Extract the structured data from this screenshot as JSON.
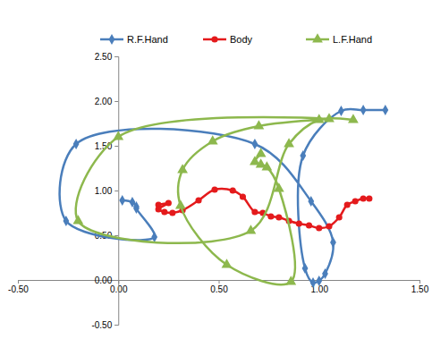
{
  "chart_data": {
    "type": "line",
    "legend": "top",
    "grid": false,
    "xlim": [
      -0.5,
      1.5
    ],
    "xticks": [
      {
        "value": -0.5,
        "label": "-0.50"
      },
      {
        "value": 0,
        "label": "0.00"
      },
      {
        "value": 0.5,
        "label": "0.50"
      },
      {
        "value": 1,
        "label": "1.00"
      },
      {
        "value": 1.5,
        "label": "1.50"
      }
    ],
    "ylim": [
      -0.5,
      2.5
    ],
    "yticks": [
      {
        "value": -0.5,
        "label": "-0.50"
      },
      {
        "value": 0,
        "label": "0.00"
      },
      {
        "value": 0.5,
        "label": "0.50"
      },
      {
        "value": 1,
        "label": "1.00"
      },
      {
        "value": 1.5,
        "label": "1.50"
      },
      {
        "value": 2,
        "label": "2.00"
      },
      {
        "value": 2.5,
        "label": "2.50"
      }
    ],
    "series": [
      {
        "name": "R.F.Hand",
        "color": "#4a7ebb",
        "marker": "diamond",
        "line_style": "solid",
        "x": [
          0.02,
          0.07,
          0.09,
          0.09,
          0.18,
          -0.26,
          -0.21,
          0.68,
          0.96,
          1.07,
          1.03,
          1.0,
          0.97,
          0.93,
          0.92,
          1.11,
          1.22,
          1.33
        ],
        "values": [
          0.89,
          0.87,
          0.82,
          0.8,
          0.48,
          0.66,
          1.52,
          1.52,
          0.88,
          0.42,
          0.07,
          -0.01,
          -0.03,
          0.13,
          1.39,
          1.89,
          1.9,
          1.9
        ]
      },
      {
        "name": "Body",
        "color": "#e41a1c",
        "marker": "circle",
        "line_style": "solid",
        "x": [
          0.2,
          0.25,
          0.2,
          0.23,
          0.27,
          0.32,
          0.4,
          0.48,
          0.57,
          0.62,
          0.68,
          0.72,
          0.76,
          0.8,
          0.85,
          0.9,
          0.95,
          1.0,
          1.05,
          1.1,
          1.14,
          1.18,
          1.22,
          1.25
        ],
        "values": [
          0.84,
          0.86,
          0.79,
          0.76,
          0.75,
          0.78,
          0.89,
          1.01,
          1.0,
          0.93,
          0.76,
          0.75,
          0.71,
          0.7,
          0.66,
          0.63,
          0.61,
          0.58,
          0.6,
          0.7,
          0.84,
          0.88,
          0.91,
          0.91
        ]
      },
      {
        "name": "L.F.Hand",
        "color": "#8db84d",
        "marker": "triangle",
        "line_style": "solid",
        "x": [
          0.71,
          0.68,
          0.71,
          0.74,
          0.8,
          0.86,
          0.54,
          0.31,
          0.32,
          0.47,
          0.7,
          1.05,
          0.0,
          -0.2,
          0.66,
          0.85,
          1.0,
          1.17
        ],
        "values": [
          1.41,
          1.32,
          1.29,
          1.26,
          1.02,
          -0.02,
          0.17,
          0.83,
          1.23,
          1.55,
          1.72,
          1.8,
          1.6,
          0.66,
          0.55,
          1.52,
          1.79,
          1.79
        ]
      }
    ]
  }
}
